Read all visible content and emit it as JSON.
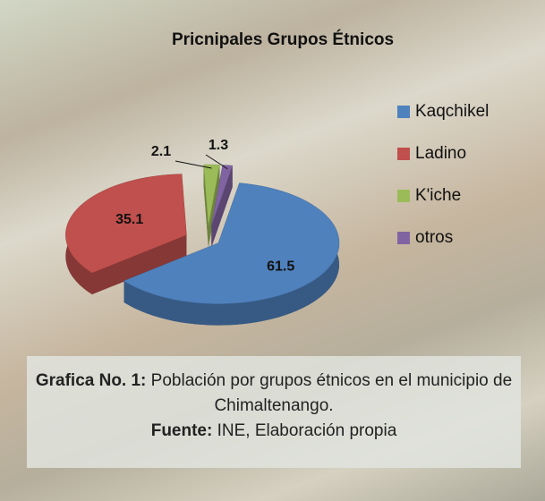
{
  "chart_data": {
    "type": "pie",
    "title": "Pricnipales Grupos Étnicos",
    "categories": [
      "Kaqchikel",
      "Ladino",
      "K'iche",
      "otros"
    ],
    "values": [
      61.5,
      35.1,
      2.1,
      1.3
    ],
    "colors": [
      "#4f81bd",
      "#c0504d",
      "#9bbb59",
      "#8064a2"
    ],
    "legend": "right"
  },
  "caption": {
    "label": "Grafica No. 1:",
    "text": "Población por  grupos étnicos en el municipio de Chimaltenango.",
    "source_label": "Fuente:",
    "source": "INE, Elaboración propia"
  }
}
